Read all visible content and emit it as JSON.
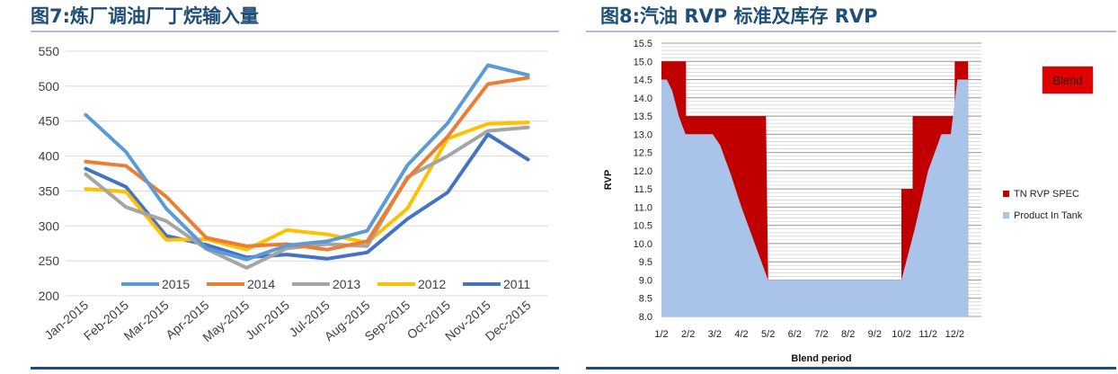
{
  "figures": [
    {
      "title": "图7:炼厂调油厂丁烷输入量"
    },
    {
      "title": "图8:汽油 RVP 标准及库存 RVP"
    }
  ],
  "chart_data": [
    {
      "type": "line",
      "categories": [
        "Jan-2015",
        "Feb-2015",
        "Mar-2015",
        "Apr-2015",
        "May-2015",
        "Jun-2015",
        "Jul-2015",
        "Aug-2015",
        "Sep-2015",
        "Oct-2015",
        "Nov-2015",
        "Dec-2015"
      ],
      "ylim": [
        200,
        550
      ],
      "yticks": [
        200,
        250,
        300,
        350,
        400,
        450,
        500,
        550
      ],
      "grid": true,
      "legend_position": "bottom-inside",
      "series": [
        {
          "name": "2015",
          "color": "#5b9bd5",
          "values": [
            459,
            406,
            325,
            268,
            252,
            272,
            278,
            293,
            387,
            447,
            530,
            516
          ]
        },
        {
          "name": "2014",
          "color": "#ed7d31",
          "values": [
            392,
            386,
            342,
            283,
            271,
            274,
            266,
            278,
            368,
            428,
            503,
            512
          ]
        },
        {
          "name": "2013",
          "color": "#a5a5a5",
          "values": [
            374,
            327,
            307,
            267,
            240,
            268,
            274,
            271,
            370,
            400,
            436,
            441
          ]
        },
        {
          "name": "2012",
          "color": "#ffc000",
          "values": [
            353,
            349,
            280,
            281,
            266,
            294,
            288,
            276,
            325,
            425,
            446,
            448
          ]
        },
        {
          "name": "2011",
          "color": "#4472c4",
          "values": [
            382,
            356,
            286,
            273,
            255,
            259,
            253,
            262,
            310,
            348,
            431,
            395
          ]
        }
      ]
    },
    {
      "type": "area",
      "xlabel": "Blend period",
      "ylabel": "RVP",
      "categories": [
        "1/2",
        "2/2",
        "3/2",
        "4/2",
        "5/2",
        "6/2",
        "7/2",
        "8/2",
        "9/2",
        "10/2",
        "11/2",
        "12/2"
      ],
      "ylim": [
        8.0,
        15.5
      ],
      "yticks": [
        "8.0",
        "8.5",
        "9.0",
        "9.5",
        "10.0",
        "10.5",
        "11.0",
        "11.5",
        "12.0",
        "12.5",
        "13.0",
        "13.5",
        "14.0",
        "14.5",
        "15.0",
        "15.5"
      ],
      "legend_position": "right",
      "blend_label": "Blend",
      "series": [
        {
          "name": "TN RVP SPEC",
          "color": "#c00000",
          "x": [
            0,
            0.92,
            0.92,
            1.92,
            1.92,
            3.92,
            4.0,
            5,
            6,
            7,
            8,
            9.0,
            9.0,
            9.42,
            9.42,
            11.0,
            11.0,
            11.5,
            11.5
          ],
          "values": [
            15.0,
            15.0,
            13.5,
            13.5,
            13.5,
            13.5,
            9.0,
            9.0,
            9.0,
            9.0,
            9.0,
            9.0,
            11.5,
            11.5,
            13.5,
            13.5,
            15.0,
            15.0,
            15.0
          ]
        },
        {
          "name": "Product In Tank",
          "color": "#a9c4e8",
          "x": [
            0,
            0.2,
            0.4,
            0.65,
            0.9,
            1.5,
            1.92,
            2.2,
            2.6,
            3.0,
            3.5,
            4.0,
            5,
            6,
            7,
            8,
            9.0,
            9.5,
            10.0,
            10.5,
            10.85,
            11.1,
            11.5
          ],
          "values": [
            14.5,
            14.5,
            14.2,
            13.5,
            13.0,
            13.0,
            13.0,
            12.7,
            11.9,
            11.0,
            10.0,
            9.0,
            9.0,
            9.0,
            9.0,
            9.0,
            9.0,
            10.4,
            12.0,
            13.0,
            13.0,
            14.5,
            14.5
          ]
        }
      ]
    }
  ]
}
